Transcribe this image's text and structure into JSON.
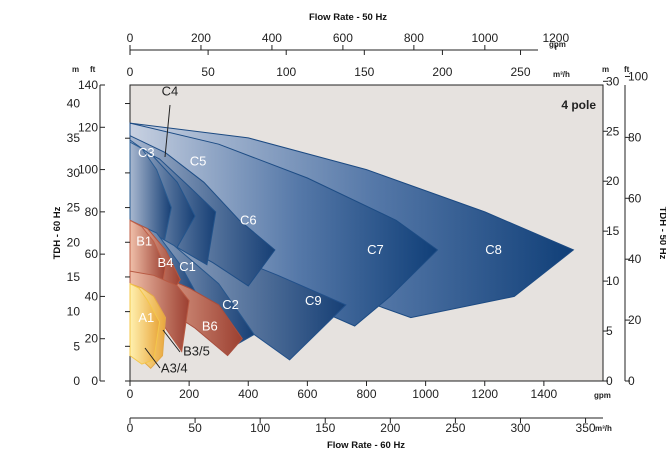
{
  "chart_data": {
    "type": "area",
    "title": "Flow Rate - 50 Hz",
    "bottom_title": "Flow Rate - 60 Hz",
    "left_title": "TDH - 60 Hz",
    "right_title": "TDH - 50 Hz",
    "annotation": "4 pole",
    "x_gpm_60": {
      "unit": "gpm",
      "ticks": [
        "0",
        "200",
        "400",
        "600",
        "800",
        "1000",
        "1200",
        "1400"
      ],
      "range": [
        0,
        1600
      ]
    },
    "x_m3h_60": {
      "unit": "m³/h",
      "ticks": [
        "0",
        "50",
        "100",
        "150",
        "200",
        "250",
        "300",
        "350"
      ],
      "range": [
        0,
        363.4
      ]
    },
    "x_gpm_50": {
      "unit": "gpm",
      "ticks": [
        "0",
        "200",
        "400",
        "600",
        "800",
        "1000",
        "1200"
      ],
      "range": [
        0,
        1333
      ]
    },
    "x_m3h_50": {
      "unit": "m³/h",
      "ticks": [
        "0",
        "50",
        "100",
        "150",
        "200",
        "250"
      ],
      "range": [
        0,
        302.8
      ]
    },
    "y_m_60": {
      "unit": "m",
      "ticks": [
        "0",
        "5",
        "10",
        "15",
        "20",
        "25",
        "30",
        "35",
        "40"
      ],
      "range": [
        0,
        42.67
      ]
    },
    "y_ft_60": {
      "unit": "ft",
      "ticks": [
        "0",
        "20",
        "40",
        "60",
        "80",
        "100",
        "120",
        "140"
      ],
      "range": [
        0,
        140
      ]
    },
    "y_m_50": {
      "unit": "m",
      "ticks": [
        "0",
        "5",
        "10",
        "15",
        "20",
        "25",
        "30"
      ],
      "range": [
        0,
        29.63
      ]
    },
    "y_ft_50": {
      "unit": "ft",
      "ticks": [
        "0",
        "20",
        "40",
        "60",
        "80",
        "100"
      ],
      "range": [
        0,
        97.2
      ]
    },
    "series": [
      {
        "name": "C8",
        "color": "#1c4a82",
        "polygon_gpm_ft": [
          [
            0,
            122
          ],
          [
            400,
            115
          ],
          [
            800,
            100
          ],
          [
            1200,
            80
          ],
          [
            1500,
            62
          ],
          [
            1300,
            40
          ],
          [
            950,
            30
          ],
          [
            750,
            40
          ],
          [
            400,
            60
          ],
          [
            0,
            76
          ]
        ]
      },
      {
        "name": "C7",
        "color": "#1d4c84",
        "polygon_gpm_ft": [
          [
            0,
            122
          ],
          [
            300,
            112
          ],
          [
            600,
            96
          ],
          [
            900,
            76
          ],
          [
            1040,
            62
          ],
          [
            880,
            40
          ],
          [
            760,
            26
          ],
          [
            500,
            42
          ],
          [
            300,
            62
          ],
          [
            0,
            80
          ]
        ]
      },
      {
        "name": "C9",
        "color": "#22508a",
        "polygon_gpm_ft": [
          [
            0,
            76
          ],
          [
            250,
            64
          ],
          [
            500,
            50
          ],
          [
            730,
            36
          ],
          [
            540,
            10
          ],
          [
            240,
            40
          ],
          [
            0,
            60
          ]
        ]
      },
      {
        "name": "C6",
        "color": "#1f4e86",
        "polygon_gpm_ft": [
          [
            0,
            116
          ],
          [
            120,
            108
          ],
          [
            250,
            94
          ],
          [
            370,
            76
          ],
          [
            490,
            62
          ],
          [
            400,
            45
          ],
          [
            280,
            56
          ],
          [
            150,
            66
          ],
          [
            0,
            78
          ]
        ]
      },
      {
        "name": "C5",
        "color": "#22528a",
        "polygon_gpm_ft": [
          [
            0,
            112
          ],
          [
            100,
            105
          ],
          [
            200,
            92
          ],
          [
            290,
            80
          ],
          [
            260,
            55
          ],
          [
            150,
            64
          ],
          [
            0,
            78
          ]
        ]
      },
      {
        "name": "C4",
        "color": "#23548c",
        "polygon_gpm_ft": [
          [
            0,
            114
          ],
          [
            80,
            106
          ],
          [
            160,
            94
          ],
          [
            220,
            78
          ],
          [
            130,
            56
          ],
          [
            0,
            70
          ]
        ]
      },
      {
        "name": "C3",
        "color": "#2a5c92",
        "polygon_gpm_ft": [
          [
            0,
            113
          ],
          [
            40,
            110
          ],
          [
            90,
            100
          ],
          [
            140,
            82
          ],
          [
            110,
            62
          ],
          [
            50,
            60
          ],
          [
            0,
            66
          ]
        ]
      },
      {
        "name": "C2",
        "color": "#26568c",
        "polygon_gpm_ft": [
          [
            0,
            76
          ],
          [
            150,
            64
          ],
          [
            300,
            46
          ],
          [
            420,
            22
          ],
          [
            320,
            14
          ],
          [
            150,
            38
          ],
          [
            0,
            50
          ]
        ]
      },
      {
        "name": "C1",
        "color": "#285890",
        "polygon_gpm_ft": [
          [
            0,
            76
          ],
          [
            90,
            70
          ],
          [
            170,
            55
          ],
          [
            230,
            40
          ],
          [
            180,
            32
          ],
          [
            100,
            46
          ],
          [
            0,
            58
          ]
        ]
      },
      {
        "name": "B6",
        "color": "#a84e3e",
        "polygon_gpm_ft": [
          [
            0,
            52
          ],
          [
            100,
            50
          ],
          [
            200,
            44
          ],
          [
            300,
            36
          ],
          [
            380,
            20
          ],
          [
            330,
            12
          ],
          [
            220,
            25
          ],
          [
            100,
            36
          ],
          [
            0,
            40
          ]
        ]
      },
      {
        "name": "B4",
        "color": "#b4553f",
        "polygon_gpm_ft": [
          [
            0,
            76
          ],
          [
            60,
            72
          ],
          [
            120,
            62
          ],
          [
            170,
            48
          ],
          [
            120,
            37
          ],
          [
            60,
            46
          ],
          [
            0,
            52
          ]
        ]
      },
      {
        "name": "B1",
        "color": "#bf6049",
        "polygon_gpm_ft": [
          [
            0,
            76
          ],
          [
            40,
            73
          ],
          [
            80,
            66
          ],
          [
            120,
            54
          ],
          [
            100,
            38
          ],
          [
            50,
            44
          ],
          [
            0,
            50
          ]
        ]
      },
      {
        "name": "B3/5",
        "color": "#b85a43",
        "polygon_gpm_ft": [
          [
            0,
            52
          ],
          [
            80,
            50
          ],
          [
            160,
            45
          ],
          [
            200,
            38
          ],
          [
            175,
            14
          ],
          [
            120,
            25
          ],
          [
            50,
            34
          ],
          [
            0,
            36
          ]
        ]
      },
      {
        "name": "A3/4",
        "color": "#e3a847",
        "polygon_gpm_ft": [
          [
            0,
            46
          ],
          [
            40,
            44
          ],
          [
            80,
            40
          ],
          [
            120,
            30
          ],
          [
            110,
            12
          ],
          [
            70,
            6
          ],
          [
            40,
            10
          ],
          [
            0,
            18
          ]
        ]
      },
      {
        "name": "A1",
        "color": "#f4c74a",
        "polygon_gpm_ft": [
          [
            0,
            46
          ],
          [
            30,
            44
          ],
          [
            60,
            38
          ],
          [
            100,
            28
          ],
          [
            80,
            10
          ],
          [
            40,
            8
          ],
          [
            0,
            12
          ]
        ]
      }
    ],
    "labels": [
      {
        "text": "C8",
        "at_gpm_ft": [
          1230,
          60
        ]
      },
      {
        "text": "C7",
        "at_gpm_ft": [
          830,
          60
        ]
      },
      {
        "text": "C9",
        "at_gpm_ft": [
          620,
          36
        ]
      },
      {
        "text": "C6",
        "at_gpm_ft": [
          400,
          74
        ]
      },
      {
        "text": "C5",
        "at_gpm_ft": [
          230,
          102
        ]
      },
      {
        "text": "C4",
        "at_gpm_ft": [
          135,
          135
        ]
      },
      {
        "text": "C3",
        "at_gpm_ft": [
          55,
          106
        ]
      },
      {
        "text": "C2",
        "at_gpm_ft": [
          340,
          34
        ]
      },
      {
        "text": "C1",
        "at_gpm_ft": [
          195,
          52
        ]
      },
      {
        "text": "B6",
        "at_gpm_ft": [
          270,
          24
        ]
      },
      {
        "text": "B4",
        "at_gpm_ft": [
          120,
          54
        ]
      },
      {
        "text": "B1",
        "at_gpm_ft": [
          48,
          64
        ]
      },
      {
        "text": "B3/5",
        "at_gpm_ft": [
          225,
          12
        ]
      },
      {
        "text": "A3/4",
        "at_gpm_ft": [
          150,
          4
        ]
      },
      {
        "text": "A1",
        "at_gpm_ft": [
          55,
          28
        ]
      }
    ]
  }
}
